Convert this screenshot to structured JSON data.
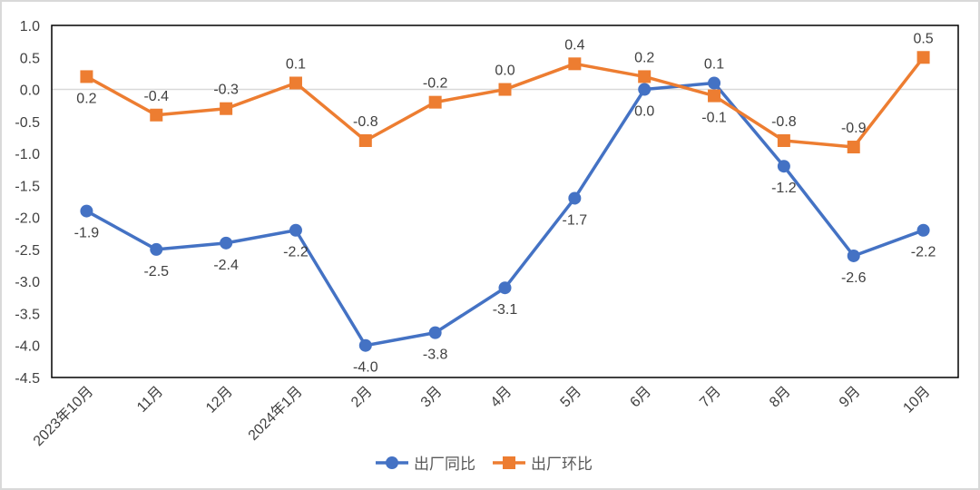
{
  "chart_data": {
    "type": "line",
    "title": "",
    "xlabel": "",
    "ylabel": "",
    "ylim": [
      -4.5,
      1.0
    ],
    "yticks": [
      "1.0",
      "0.5",
      "0.0",
      "-0.5",
      "-1.0",
      "-1.5",
      "-2.0",
      "-2.5",
      "-3.0",
      "-3.5",
      "-4.0",
      "-4.5"
    ],
    "ytick_values": [
      1.0,
      0.5,
      0.0,
      -0.5,
      -1.0,
      -1.5,
      -2.0,
      -2.5,
      -3.0,
      -3.5,
      -4.0,
      -4.5
    ],
    "grid": false,
    "legend_position": "bottom",
    "categories": [
      "2023年10月",
      "11月",
      "12月",
      "2024年1月",
      "2月",
      "3月",
      "4月",
      "5月",
      "6月",
      "7月",
      "8月",
      "9月",
      "10月"
    ],
    "series": [
      {
        "name": "出厂同比",
        "color": "#4472c4",
        "marker": "circle",
        "values": [
          -1.9,
          -2.5,
          -2.4,
          -2.2,
          -4.0,
          -3.8,
          -3.1,
          -1.7,
          0.0,
          0.1,
          -1.2,
          -2.6,
          -2.2
        ],
        "labels": [
          "-1.9",
          "-2.5",
          "-2.4",
          "-2.2",
          "-4.0",
          "-3.8",
          "-3.1",
          "-1.7",
          "0.0",
          "0.1",
          "-1.2",
          "-2.6",
          "-2.2"
        ],
        "label_pos": [
          "below",
          "below",
          "below",
          "below",
          "below",
          "below",
          "below",
          "below",
          "below",
          "above",
          "below",
          "below",
          "below"
        ]
      },
      {
        "name": "出厂环比",
        "color": "#ed7d31",
        "marker": "square",
        "values": [
          0.2,
          -0.4,
          -0.3,
          0.1,
          -0.8,
          -0.2,
          0.0,
          0.4,
          0.2,
          -0.1,
          -0.8,
          -0.9,
          0.5
        ],
        "labels": [
          "0.2",
          "-0.4",
          "-0.3",
          "0.1",
          "-0.8",
          "-0.2",
          "0.0",
          "0.4",
          "0.2",
          "-0.1",
          "-0.8",
          "-0.9",
          "0.5"
        ],
        "label_pos": [
          "below",
          "above",
          "above",
          "above",
          "above",
          "above",
          "above",
          "above",
          "above",
          "below",
          "above",
          "above",
          "above"
        ]
      }
    ]
  }
}
